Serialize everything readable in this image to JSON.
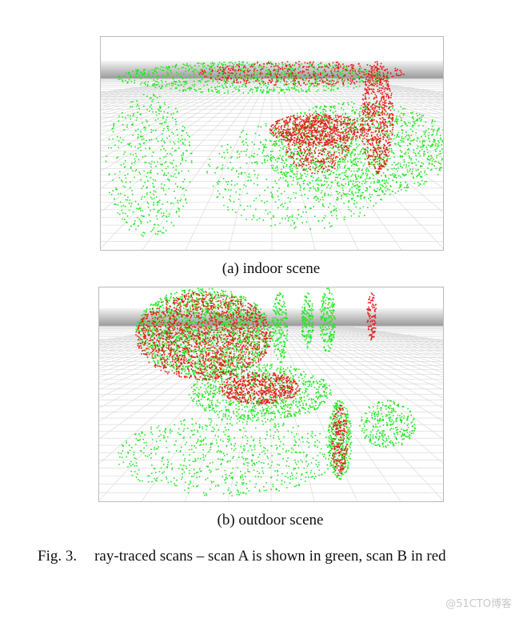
{
  "figure": {
    "subfigures": [
      {
        "caption": "(a)  indoor scene"
      },
      {
        "caption": "(b)  outdoor scene"
      }
    ],
    "caption_label": "Fig. 3.",
    "caption_text": "ray-traced scans – scan A is shown in green, scan B in red"
  },
  "watermark": "@51CTO博客"
}
